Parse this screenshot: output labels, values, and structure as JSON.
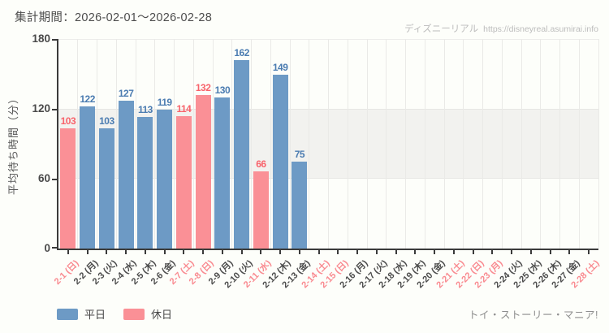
{
  "header": {
    "period_label": "集計期間：2026-02-01～2026-02-28",
    "watermark_brand": "ディズニーリアル",
    "watermark_url": "https://disneyreal.asumirai.info"
  },
  "footer": {
    "attraction_name": "トイ・ストーリー・マニア!"
  },
  "legend": [
    {
      "key": "weekday",
      "label": "平日",
      "color": "#6d9ac5"
    },
    {
      "key": "holiday",
      "label": "休日",
      "color": "#fa9096"
    }
  ],
  "colors": {
    "weekday_bar": "#6d9ac5",
    "holiday_bar": "#fa9096",
    "weekday_value_label": "#4b7cb1",
    "holiday_value_label": "#f8636b",
    "holiday_tick_label": "#f9898f",
    "weekday_tick_label": "#4a4a4a",
    "band_fill": "#f2f2ef",
    "axis": "#3b3b3b"
  },
  "chart_data": {
    "type": "bar",
    "title": "",
    "xlabel": "",
    "ylabel": "平均待ち時間（分）",
    "ylim": [
      0,
      180
    ],
    "yticks": [
      0,
      60,
      120,
      180
    ],
    "shaded_band_y": [
      60,
      120
    ],
    "grid": "vertical",
    "legend_position": "bottom-left",
    "categories": [
      "2-1 (日)",
      "2-2 (月)",
      "2-3 (火)",
      "2-4 (水)",
      "2-5 (木)",
      "2-6 (金)",
      "2-7 (土)",
      "2-8 (日)",
      "2-9 (月)",
      "2-10 (火)",
      "2-11 (水)",
      "2-12 (木)",
      "2-13 (金)",
      "2-14 (土)",
      "2-15 (日)",
      "2-16 (月)",
      "2-17 (火)",
      "2-18 (水)",
      "2-19 (木)",
      "2-20 (金)",
      "2-21 (土)",
      "2-22 (日)",
      "2-23 (月)",
      "2-24 (火)",
      "2-25 (水)",
      "2-26 (木)",
      "2-27 (金)",
      "2-28 (土)"
    ],
    "day_types": [
      "holiday",
      "weekday",
      "weekday",
      "weekday",
      "weekday",
      "weekday",
      "holiday",
      "holiday",
      "weekday",
      "weekday",
      "holiday",
      "weekday",
      "weekday",
      "holiday",
      "holiday",
      "weekday",
      "weekday",
      "weekday",
      "weekday",
      "weekday",
      "holiday",
      "holiday",
      "holiday",
      "weekday",
      "weekday",
      "weekday",
      "weekday",
      "holiday"
    ],
    "values": [
      103,
      122,
      103,
      127,
      113,
      119,
      114,
      132,
      130,
      162,
      66,
      149,
      75,
      null,
      null,
      null,
      null,
      null,
      null,
      null,
      null,
      null,
      null,
      null,
      null,
      null,
      null,
      null
    ]
  }
}
